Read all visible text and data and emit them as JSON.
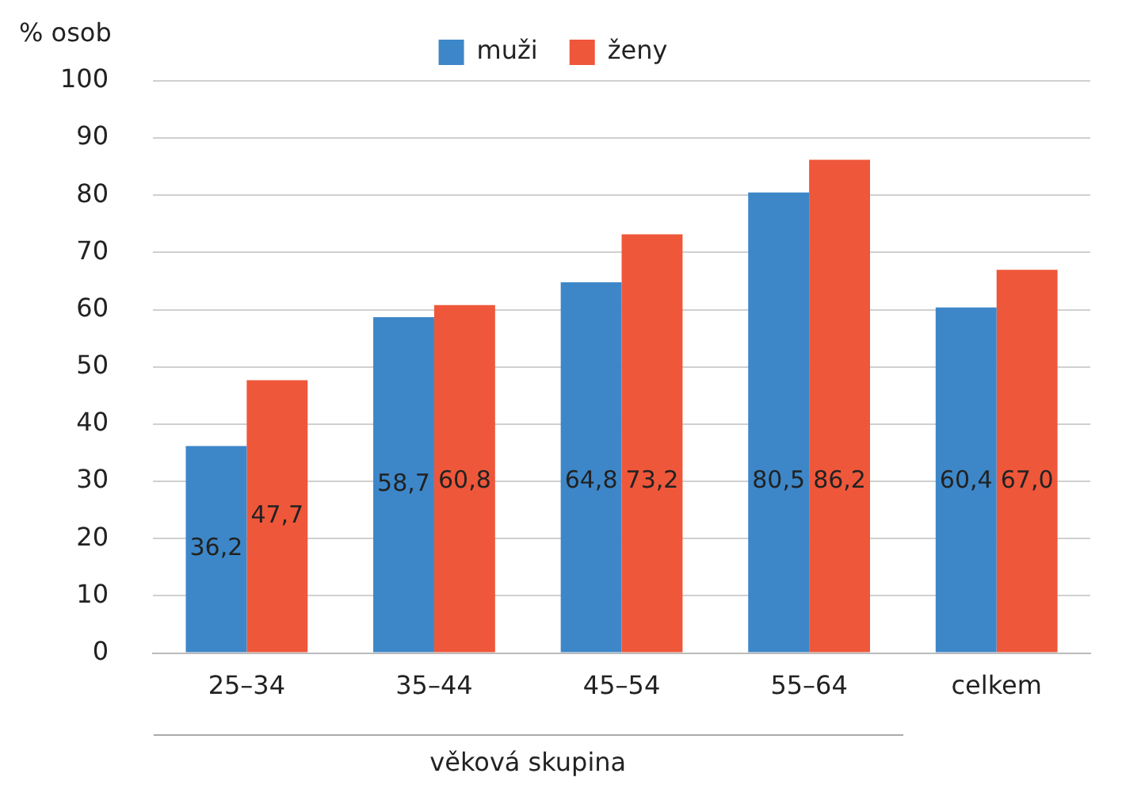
{
  "chart_data": {
    "type": "bar",
    "ylabel": "% osob",
    "xlabel": "věková skupina",
    "categories": [
      "25–34",
      "35–44",
      "45–54",
      "55–64",
      "celkem"
    ],
    "series": [
      {
        "name": "muži",
        "color": "#3d87c9",
        "values": [
          36.2,
          58.7,
          64.8,
          80.5,
          60.4
        ],
        "value_labels": [
          "36,2",
          "58,7",
          "64,8",
          "80,5",
          "60,4"
        ]
      },
      {
        "name": "ženy",
        "color": "#ef573a",
        "values": [
          47.7,
          60.8,
          73.2,
          86.2,
          67.0
        ],
        "value_labels": [
          "47,7",
          "60,8",
          "73,2",
          "86,2",
          "67,0"
        ]
      }
    ],
    "ylim": [
      0,
      100
    ],
    "yticks": [
      0,
      10,
      20,
      30,
      40,
      50,
      60,
      70,
      80,
      90,
      100
    ],
    "grid": "y",
    "legend": "top"
  }
}
